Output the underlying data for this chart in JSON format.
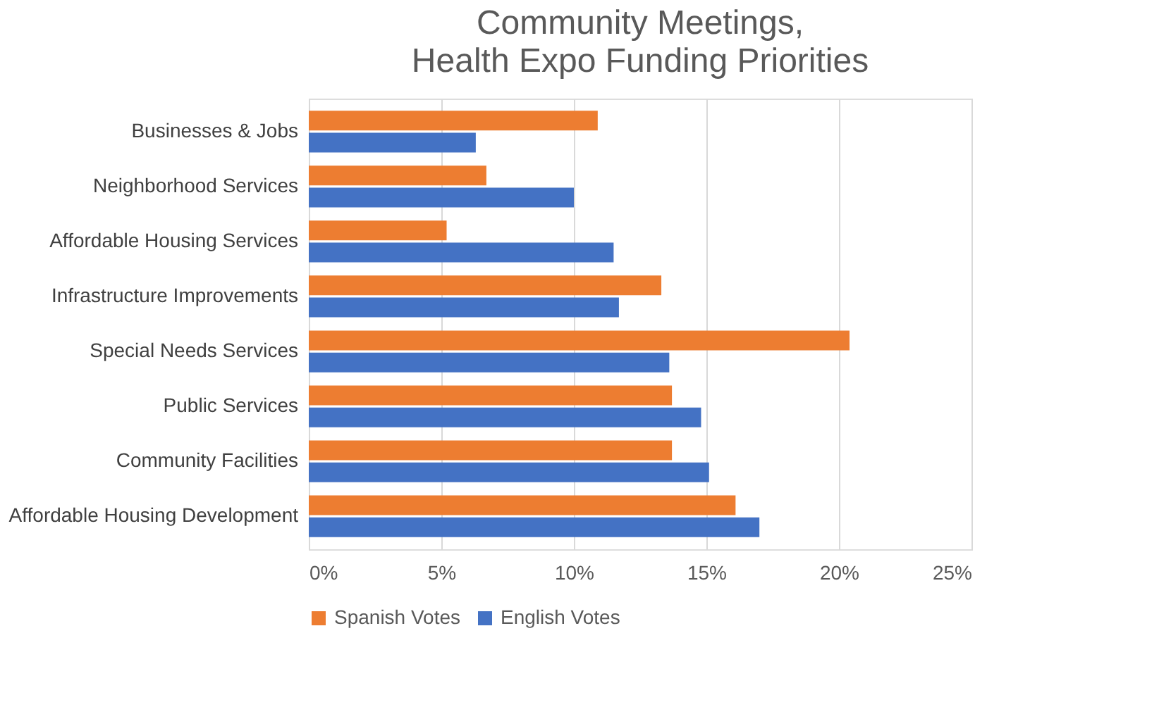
{
  "chart_data": {
    "type": "bar",
    "orientation": "horizontal",
    "title": "Community Meetings, Health Expo Funding Priorities",
    "categories": [
      "Businesses & Jobs",
      "Neighborhood Services",
      "Affordable Housing Services",
      "Infrastructure Improvements",
      "Special Needs Services",
      "Public Services",
      "Community Facilities",
      "Affordable Housing Development"
    ],
    "series": [
      {
        "name": "Spanish Votes",
        "color": "#ed7d31",
        "values": [
          10.9,
          6.7,
          5.2,
          13.3,
          20.4,
          13.7,
          13.7,
          16.1
        ]
      },
      {
        "name": "English Votes",
        "color": "#4472c4",
        "values": [
          6.3,
          10.0,
          11.5,
          11.7,
          13.6,
          14.8,
          15.1,
          17.0
        ]
      }
    ],
    "xlim": [
      0,
      25
    ],
    "xticks": [
      {
        "value": 0,
        "label": "0%"
      },
      {
        "value": 5,
        "label": "5%"
      },
      {
        "value": 10,
        "label": "10%"
      },
      {
        "value": 15,
        "label": "15%"
      },
      {
        "value": 20,
        "label": "20%"
      },
      {
        "value": 25,
        "label": "25%"
      }
    ],
    "grid": "x",
    "legend": "bottom"
  }
}
